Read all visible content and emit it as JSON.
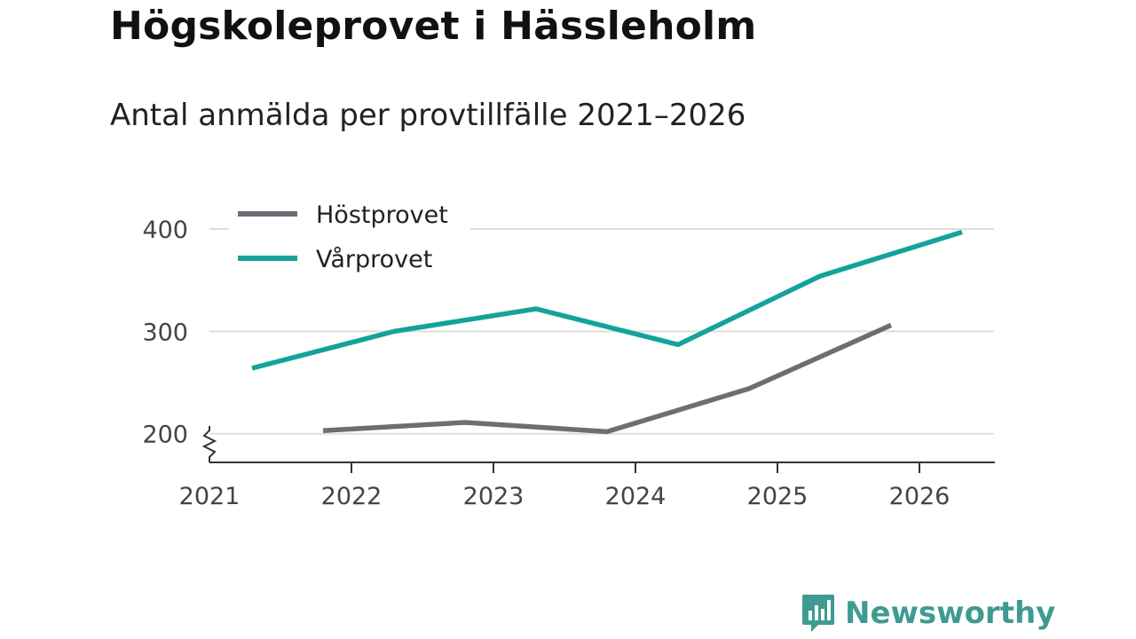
{
  "title": "Högskoleprovet i Hässleholm",
  "subtitle": "Antal anmälda per provtillfälle 2021–2026",
  "brand": {
    "name": "Newsworthy",
    "icon": "bar-chart-speech-bubble-icon",
    "color": "#3f9b92"
  },
  "chart_data": {
    "type": "line",
    "x_ticks": [
      "2021",
      "2022",
      "2023",
      "2024",
      "2025",
      "2026"
    ],
    "y_ticks": [
      "200",
      "300",
      "400"
    ],
    "ylim": [
      172,
      400
    ],
    "y_axis_broken": true,
    "legend_position": "top-left",
    "series": [
      {
        "name": "Höstprovet",
        "color": "#6e6d75",
        "points": [
          {
            "x": 2021.8,
            "y": 203
          },
          {
            "x": 2022.8,
            "y": 211
          },
          {
            "x": 2023.8,
            "y": 202
          },
          {
            "x": 2024.8,
            "y": 244
          },
          {
            "x": 2025.8,
            "y": 306
          }
        ]
      },
      {
        "name": "Vårprovet",
        "color": "#14a39a",
        "points": [
          {
            "x": 2021.3,
            "y": 264
          },
          {
            "x": 2022.3,
            "y": 300
          },
          {
            "x": 2023.3,
            "y": 322
          },
          {
            "x": 2024.3,
            "y": 287
          },
          {
            "x": 2025.3,
            "y": 354
          },
          {
            "x": 2026.3,
            "y": 397
          }
        ]
      }
    ]
  }
}
